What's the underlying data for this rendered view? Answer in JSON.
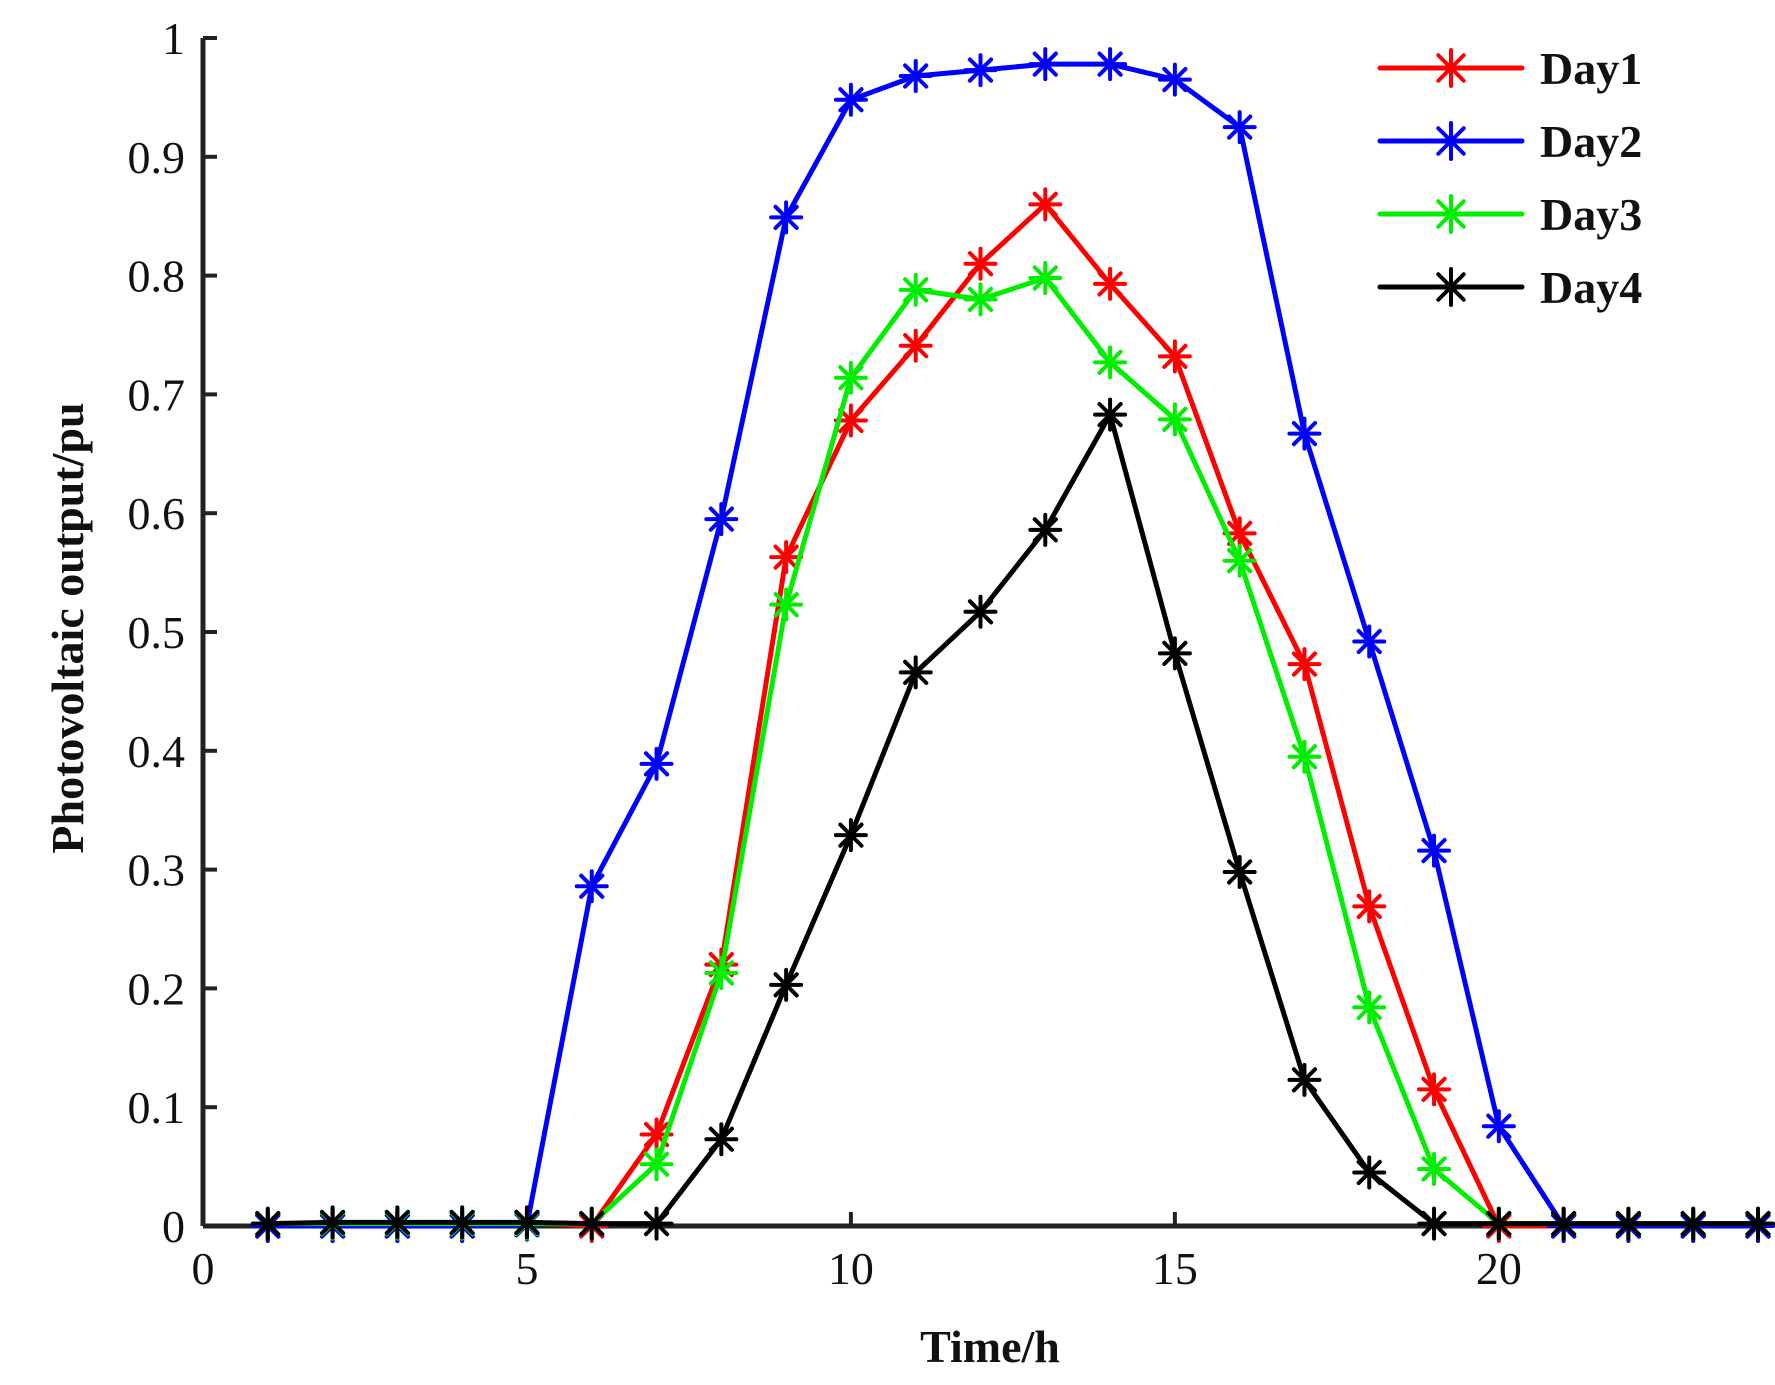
{
  "chart_data": {
    "type": "line",
    "title": "",
    "xlabel": "Time/h",
    "ylabel": "Photovoltaic output/pu",
    "xlim": [
      0,
      24
    ],
    "ylim": [
      0,
      1
    ],
    "xticks": [
      0,
      5,
      10,
      15,
      20
    ],
    "xtick_labels": [
      "0",
      "5",
      "10",
      "15",
      "20"
    ],
    "yticks": [
      0,
      0.1,
      0.2,
      0.3,
      0.4,
      0.5,
      0.6,
      0.7,
      0.8,
      0.9,
      1
    ],
    "ytick_labels": [
      "0",
      "0.1",
      "0.2",
      "0.3",
      "0.4",
      "0.5",
      "0.6",
      "0.7",
      "0.8",
      "0.9",
      "1"
    ],
    "grid": false,
    "legend_position": "top-right",
    "x": [
      1,
      2,
      3,
      4,
      5,
      6,
      7,
      8,
      9,
      10,
      11,
      12,
      13,
      14,
      15,
      16,
      17,
      18,
      19,
      20,
      21,
      22,
      23,
      24
    ],
    "series": [
      {
        "name": "Day1",
        "color": "#ff0000",
        "values": [
          0,
          0,
          0,
          0,
          0.003,
          0,
          0.077,
          0.22,
          0.563,
          0.678,
          0.741,
          0.81,
          0.86,
          0.793,
          0.732,
          0.583,
          0.473,
          0.269,
          0.115,
          0,
          0,
          0,
          0,
          0
        ]
      },
      {
        "name": "Day2",
        "color": "#0000ff",
        "values": [
          0,
          0,
          0,
          0,
          0.001,
          0.286,
          0.389,
          0.595,
          0.849,
          0.948,
          0.968,
          0.973,
          0.978,
          0.978,
          0.965,
          0.925,
          0.667,
          0.492,
          0.316,
          0.084,
          0,
          0,
          0,
          0
        ]
      },
      {
        "name": "Day3",
        "color": "#00ee00",
        "values": [
          0.002,
          0.002,
          0.002,
          0.002,
          0.002,
          0.002,
          0.052,
          0.213,
          0.523,
          0.714,
          0.788,
          0.78,
          0.798,
          0.727,
          0.679,
          0.56,
          0.395,
          0.184,
          0.048,
          0.002,
          0.002,
          0.002,
          0.002,
          0.002
        ]
      },
      {
        "name": "Day4",
        "color": "#000000",
        "values": [
          0.002,
          0.003,
          0.003,
          0.003,
          0.003,
          0.002,
          0.002,
          0.073,
          0.203,
          0.329,
          0.466,
          0.517,
          0.586,
          0.683,
          0.482,
          0.298,
          0.123,
          0.045,
          0.002,
          0.002,
          0.002,
          0.002,
          0.002,
          0.002
        ]
      }
    ]
  }
}
